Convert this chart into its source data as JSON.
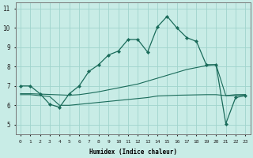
{
  "xlabel": "Humidex (Indice chaleur)",
  "bg_color": "#c8ece6",
  "grid_color": "#a0d4cc",
  "line_color": "#1a6b5a",
  "xlim_min": -0.5,
  "xlim_max": 23.5,
  "ylim_min": 4.5,
  "ylim_max": 11.3,
  "xticks": [
    0,
    1,
    2,
    3,
    4,
    5,
    6,
    7,
    8,
    9,
    10,
    11,
    12,
    13,
    14,
    15,
    16,
    17,
    18,
    19,
    20,
    21,
    22,
    23
  ],
  "yticks": [
    5,
    6,
    7,
    8,
    9,
    10,
    11
  ],
  "line1_x": [
    0,
    1,
    2,
    3,
    4,
    5,
    6,
    7,
    8,
    9,
    10,
    11,
    12,
    13,
    14,
    15,
    16,
    17,
    18,
    19,
    20,
    21,
    22,
    23
  ],
  "line1_y": [
    7.0,
    7.0,
    6.6,
    6.05,
    5.9,
    6.6,
    7.0,
    7.75,
    8.1,
    8.6,
    8.8,
    9.4,
    9.4,
    8.75,
    10.05,
    10.6,
    10.0,
    9.5,
    9.3,
    8.1,
    8.1,
    5.05,
    6.4,
    6.5
  ],
  "line2_x": [
    0,
    1,
    2,
    3,
    4,
    5,
    6,
    7,
    8,
    9,
    10,
    11,
    12,
    13,
    14,
    15,
    16,
    17,
    18,
    19,
    20,
    21,
    22,
    23
  ],
  "line2_y": [
    6.6,
    6.6,
    6.58,
    6.56,
    6.54,
    6.52,
    6.55,
    6.62,
    6.7,
    6.8,
    6.9,
    7.0,
    7.1,
    7.25,
    7.4,
    7.55,
    7.7,
    7.85,
    7.95,
    8.05,
    8.1,
    6.5,
    6.5,
    6.55
  ],
  "line3_x": [
    0,
    1,
    2,
    3,
    4,
    5,
    6,
    7,
    8,
    9,
    10,
    11,
    12,
    13,
    14,
    15,
    16,
    17,
    18,
    19,
    20,
    21,
    22,
    23
  ],
  "line3_y": [
    6.55,
    6.55,
    6.5,
    6.45,
    6.0,
    6.0,
    6.05,
    6.1,
    6.15,
    6.2,
    6.25,
    6.3,
    6.35,
    6.4,
    6.48,
    6.5,
    6.52,
    6.53,
    6.54,
    6.55,
    6.55,
    6.5,
    6.55,
    6.55
  ]
}
